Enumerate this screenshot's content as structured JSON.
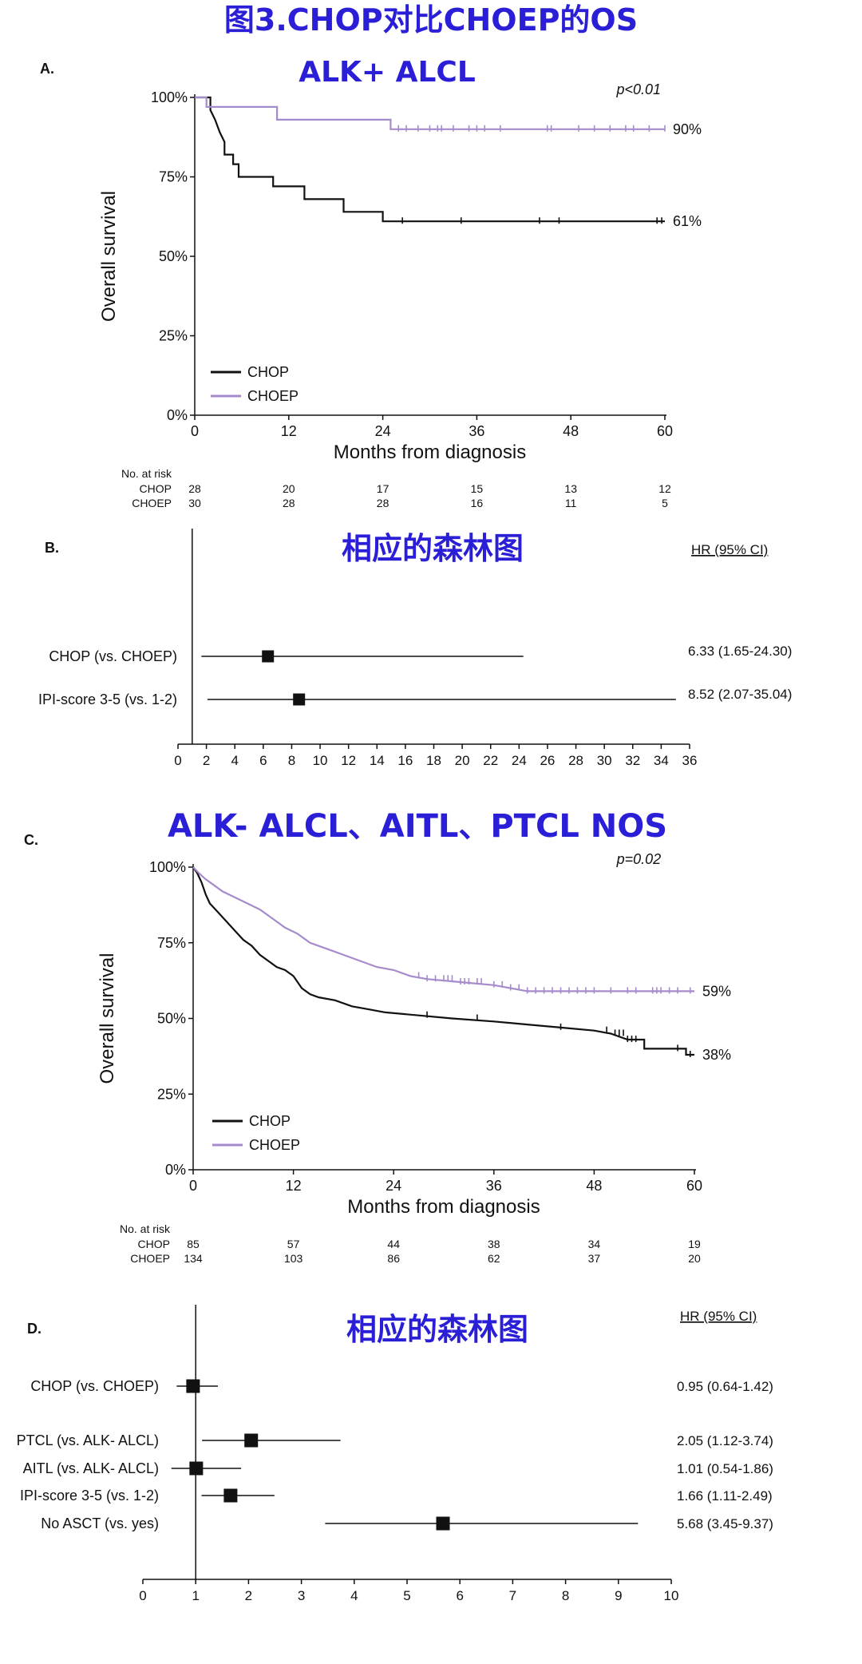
{
  "title": "图3.CHOP对比CHOEP的OS",
  "colors": {
    "chop": "#111111",
    "choep": "#a68bcc",
    "title": "#2a1fd6"
  },
  "chart_data": [
    {
      "panel": "A.",
      "type": "line",
      "subtitle": "ALK+ ALCL",
      "xlabel": "Months from diagnosis",
      "ylabel": "Overall survival",
      "xlim": [
        0,
        60
      ],
      "ylim": [
        0,
        100
      ],
      "x_ticks": [
        "0",
        "12",
        "24",
        "36",
        "48",
        "60"
      ],
      "y_ticks": [
        "0%",
        "25%",
        "50%",
        "75%",
        "100%"
      ],
      "pvalue": "p<0.01",
      "legend": [
        "CHOP",
        "CHOEP"
      ],
      "series": [
        {
          "name": "CHOP",
          "end_label": "61%",
          "points": [
            [
              0,
              100
            ],
            [
              2,
              100
            ],
            [
              2,
              96
            ],
            [
              2.6,
              93
            ],
            [
              3.2,
              89
            ],
            [
              3.8,
              86
            ],
            [
              3.8,
              82
            ],
            [
              4.9,
              82
            ],
            [
              4.9,
              79
            ],
            [
              5.6,
              79
            ],
            [
              5.6,
              75
            ],
            [
              10,
              75
            ],
            [
              10,
              72
            ],
            [
              14,
              72
            ],
            [
              14,
              68
            ],
            [
              19,
              68
            ],
            [
              19,
              64
            ],
            [
              24,
              64
            ],
            [
              24,
              61
            ],
            [
              60,
              61
            ]
          ],
          "censored": [
            26.5,
            34,
            44,
            46.5,
            59,
            59.6
          ]
        },
        {
          "name": "CHOEP",
          "end_label": "90%",
          "points": [
            [
              0,
              100
            ],
            [
              1.5,
              100
            ],
            [
              1.5,
              97
            ],
            [
              10.5,
              97
            ],
            [
              10.5,
              93
            ],
            [
              25,
              93
            ],
            [
              25,
              90
            ],
            [
              60,
              90
            ]
          ],
          "censored": [
            26,
            27,
            28.5,
            30,
            31,
            31.5,
            33,
            35,
            36,
            37,
            39,
            45,
            45.5,
            49,
            51,
            53,
            55,
            56,
            58,
            60
          ]
        }
      ],
      "risk_header": "No. at risk",
      "risk_rows": [
        {
          "label": "CHOP",
          "values": [
            "28",
            "20",
            "17",
            "15",
            "13",
            "12"
          ]
        },
        {
          "label": "CHOEP",
          "values": [
            "30",
            "28",
            "28",
            "16",
            "11",
            "5"
          ]
        }
      ]
    },
    {
      "panel": "B.",
      "type": "forest",
      "subtitle": "相应的森林图",
      "hr_header": "HR (95% CI)",
      "xlim": [
        0,
        36
      ],
      "x_ticks": [
        "0",
        "2",
        "4",
        "6",
        "8",
        "10",
        "12",
        "14",
        "16",
        "18",
        "20",
        "22",
        "24",
        "26",
        "28",
        "30",
        "32",
        "34",
        "36"
      ],
      "rows": [
        {
          "label": "CHOP (vs. CHOEP)",
          "hr": 6.33,
          "lo": 1.65,
          "hi": 24.3,
          "text": "6.33 (1.65-24.30)"
        },
        {
          "label": "IPI-score 3-5 (vs. 1-2)",
          "hr": 8.52,
          "lo": 2.07,
          "hi": 35.04,
          "text": "8.52 (2.07-35.04)"
        }
      ]
    },
    {
      "panel": "C.",
      "type": "line",
      "subtitle": "ALK- ALCL、AITL、PTCL NOS",
      "xlabel": "Months from diagnosis",
      "ylabel": "Overall survival",
      "xlim": [
        0,
        60
      ],
      "ylim": [
        0,
        100
      ],
      "x_ticks": [
        "0",
        "12",
        "24",
        "36",
        "48",
        "60"
      ],
      "y_ticks": [
        "0%",
        "25%",
        "50%",
        "75%",
        "100%"
      ],
      "pvalue": "p=0.02",
      "legend": [
        "CHOP",
        "CHOEP"
      ],
      "series": [
        {
          "name": "CHOP",
          "end_label": "38%",
          "points": [
            [
              0,
              100
            ],
            [
              0.5,
              98
            ],
            [
              1,
              95
            ],
            [
              1.5,
              91
            ],
            [
              2,
              88
            ],
            [
              3,
              85
            ],
            [
              4,
              82
            ],
            [
              5,
              79
            ],
            [
              6,
              76
            ],
            [
              7,
              74
            ],
            [
              8,
              71
            ],
            [
              9,
              69
            ],
            [
              10,
              67
            ],
            [
              11,
              66
            ],
            [
              12,
              64
            ],
            [
              13,
              60
            ],
            [
              14,
              58
            ],
            [
              15,
              57
            ],
            [
              17,
              56
            ],
            [
              19,
              54
            ],
            [
              21,
              53
            ],
            [
              23,
              52
            ],
            [
              27,
              51
            ],
            [
              31,
              50
            ],
            [
              36,
              49
            ],
            [
              40,
              48
            ],
            [
              44,
              47
            ],
            [
              48,
              46
            ],
            [
              50,
              45
            ],
            [
              52,
              43
            ],
            [
              54,
              43
            ],
            [
              54,
              40
            ],
            [
              59,
              40
            ],
            [
              59,
              38
            ],
            [
              60,
              38
            ]
          ],
          "censored": [
            28,
            34,
            44,
            49.5,
            50.5,
            51,
            51.5,
            52,
            52.5,
            53,
            58,
            59.5
          ]
        },
        {
          "name": "CHOEP",
          "end_label": "59%",
          "points": [
            [
              0,
              100
            ],
            [
              0.7,
              98
            ],
            [
              1.5,
              96
            ],
            [
              2.5,
              94
            ],
            [
              3.5,
              92
            ],
            [
              5,
              90
            ],
            [
              6.5,
              88
            ],
            [
              8,
              86
            ],
            [
              9.5,
              83
            ],
            [
              11,
              80
            ],
            [
              12.5,
              78
            ],
            [
              14,
              75
            ],
            [
              16,
              73
            ],
            [
              18,
              71
            ],
            [
              20,
              69
            ],
            [
              22,
              67
            ],
            [
              24,
              66
            ],
            [
              26,
              64
            ],
            [
              28,
              63
            ],
            [
              32,
              62
            ],
            [
              36,
              61
            ],
            [
              38,
              60
            ],
            [
              40,
              59
            ],
            [
              60,
              59
            ]
          ],
          "censored": [
            27,
            28,
            29,
            30,
            30.5,
            31,
            32,
            32.5,
            33,
            34,
            34.5,
            36,
            37,
            38,
            39,
            40,
            41,
            42,
            43,
            44,
            45,
            46,
            47,
            48,
            50,
            52,
            53,
            55,
            55.5,
            56,
            57,
            58,
            59.5
          ]
        }
      ],
      "risk_header": "No. at risk",
      "risk_rows": [
        {
          "label": "CHOP",
          "values": [
            "85",
            "57",
            "44",
            "38",
            "34",
            "19"
          ]
        },
        {
          "label": "CHOEP",
          "values": [
            "134",
            "103",
            "86",
            "62",
            "37",
            "20"
          ]
        }
      ]
    },
    {
      "panel": "D.",
      "type": "forest",
      "subtitle": "相应的森林图",
      "hr_header": "HR (95% CI)",
      "xlim": [
        0,
        10
      ],
      "x_ticks": [
        "0",
        "1",
        "2",
        "3",
        "4",
        "5",
        "6",
        "7",
        "8",
        "9",
        "10"
      ],
      "rows": [
        {
          "label": "CHOP (vs. CHOEP)",
          "hr": 0.95,
          "lo": 0.64,
          "hi": 1.42,
          "text": "0.95 (0.64-1.42)"
        },
        {
          "label": "PTCL (vs. ALK- ALCL)",
          "hr": 2.05,
          "lo": 1.12,
          "hi": 3.74,
          "text": "2.05 (1.12-3.74)"
        },
        {
          "label": "AITL (vs. ALK- ALCL)",
          "hr": 1.01,
          "lo": 0.54,
          "hi": 1.86,
          "text": "1.01 (0.54-1.86)"
        },
        {
          "label": "IPI-score 3-5 (vs. 1-2)",
          "hr": 1.66,
          "lo": 1.11,
          "hi": 2.49,
          "text": "1.66 (1.11-2.49)"
        },
        {
          "label": "No ASCT (vs. yes)",
          "hr": 5.68,
          "lo": 3.45,
          "hi": 9.37,
          "text": "5.68 (3.45-9.37)"
        }
      ]
    }
  ]
}
